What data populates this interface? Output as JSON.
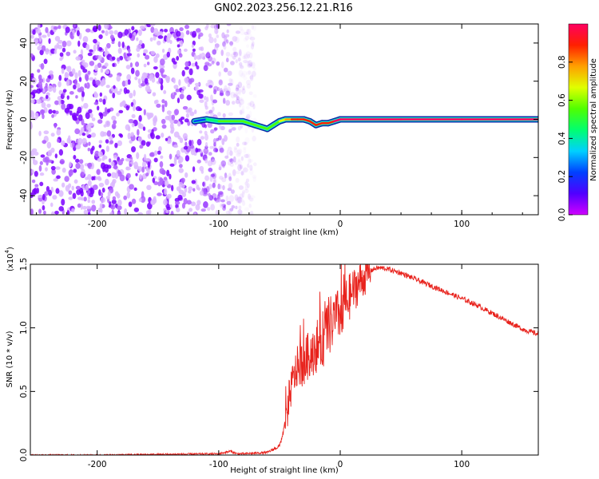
{
  "title": "GN02.2023.256.12.21.R16",
  "colormap": [
    "#d000ff",
    "#5000ff",
    "#0040ff",
    "#00d0ff",
    "#00ff70",
    "#50ff00",
    "#e0ff00",
    "#ffa000",
    "#ff2000",
    "#ff0060"
  ],
  "chart_data": [
    {
      "type": "heatmap",
      "title": "GN02.2023.256.12.21.R16",
      "xlabel": "Height of straight line (km)",
      "ylabel": "Frequency (Hz)",
      "xlim": [
        -255,
        163
      ],
      "ylim": [
        -50,
        50
      ],
      "xticks": [
        -200,
        -100,
        0,
        100
      ],
      "yticks": [
        -40,
        -20,
        0,
        20,
        40
      ],
      "colorbar": {
        "label": "Normalized spectral amplitude",
        "range": [
          0,
          1
        ],
        "ticks": [
          "0.0",
          "0.2",
          "0.4",
          "0.6",
          "0.8"
        ]
      },
      "noise_region_km": [
        -255,
        -85
      ],
      "tone_track": {
        "x": [
          -120,
          -110,
          -100,
          -90,
          -80,
          -70,
          -65,
          -60,
          -55,
          -50,
          -45,
          -40,
          -35,
          -30,
          -25,
          -20,
          -15,
          -10,
          -5,
          0,
          50,
          100,
          163
        ],
        "freq": [
          -1,
          0,
          -1,
          -1,
          -1,
          -3,
          -4,
          -5,
          -3,
          -1,
          0,
          0,
          0,
          0,
          -1,
          -3,
          -2,
          -2,
          -1,
          0,
          0,
          0,
          0
        ],
        "amplitude": [
          0.25,
          0.45,
          0.5,
          0.55,
          0.55,
          0.5,
          0.5,
          0.55,
          0.6,
          0.7,
          0.8,
          0.85,
          0.9,
          0.9,
          0.9,
          0.9,
          0.9,
          0.92,
          0.95,
          1.0,
          1.0,
          1.0,
          1.0
        ]
      }
    },
    {
      "type": "line",
      "xlabel": "Height of straight line (km)",
      "ylabel": "SNR (10 * v/v)",
      "y_multiplier": "(x10^4)",
      "xlim": [
        -255,
        163
      ],
      "ylim": [
        0,
        1.5
      ],
      "xticks": [
        -200,
        -100,
        0,
        100
      ],
      "yticks": [
        "0.0",
        "0.5",
        "1.0",
        "1.5"
      ],
      "series": [
        {
          "color": "#e8221c",
          "x": [
            -255,
            -200,
            -150,
            -100,
            -90,
            -85,
            -80,
            -60,
            -50,
            -45,
            -40,
            -35,
            -30,
            -25,
            -20,
            -15,
            -10,
            -5,
            0,
            5,
            10,
            15,
            20,
            25,
            30,
            35,
            40,
            50,
            60,
            70,
            80,
            90,
            100,
            110,
            120,
            130,
            140,
            150,
            163
          ],
          "y": [
            0.0,
            0.0,
            0.005,
            0.01,
            0.03,
            0.01,
            0.01,
            0.02,
            0.07,
            0.25,
            0.55,
            0.7,
            0.72,
            0.8,
            0.85,
            0.9,
            1.0,
            1.05,
            1.12,
            1.2,
            1.28,
            1.35,
            1.4,
            1.45,
            1.47,
            1.47,
            1.46,
            1.43,
            1.39,
            1.35,
            1.31,
            1.27,
            1.23,
            1.19,
            1.14,
            1.09,
            1.04,
            0.99,
            0.95
          ]
        }
      ]
    }
  ],
  "labels": {
    "y_exponent_prefix": "(x10",
    "y_exponent_power": "4",
    "y_exponent_suffix": ")"
  }
}
